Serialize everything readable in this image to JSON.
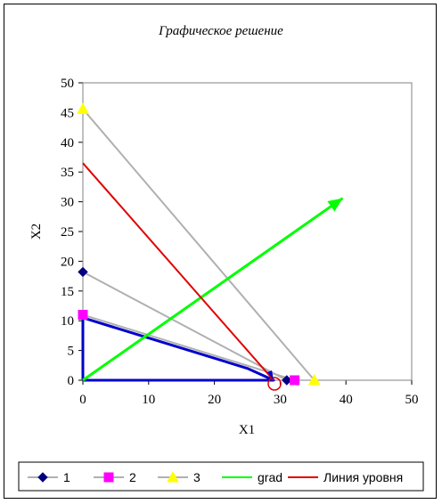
{
  "chart_data": {
    "type": "scatter",
    "title": "Графическое решение",
    "xlabel": "X1",
    "ylabel": "X2",
    "xlim": [
      0,
      50
    ],
    "ylim": [
      0,
      50
    ],
    "x_ticks": [
      "0",
      "10",
      "20",
      "30",
      "40",
      "50"
    ],
    "y_ticks": [
      "0",
      "5",
      "10",
      "15",
      "20",
      "25",
      "30",
      "35",
      "40",
      "45",
      "50"
    ],
    "grid": false,
    "legend_position": "bottom",
    "series": [
      {
        "name": "1",
        "color": "#b0b0b0",
        "marker": "diamond",
        "marker_color": "#000080",
        "points": [
          [
            0,
            18.2
          ],
          [
            31,
            0
          ]
        ]
      },
      {
        "name": "2",
        "color": "#b0b0b0",
        "marker": "square",
        "marker_color": "#ff00ff",
        "points": [
          [
            0,
            11
          ],
          [
            32.2,
            0
          ]
        ]
      },
      {
        "name": "3",
        "color": "#b0b0b0",
        "marker": "triangle",
        "marker_color": "#ffff00",
        "points": [
          [
            0,
            45.6
          ],
          [
            35.2,
            0
          ]
        ]
      },
      {
        "name": "grad",
        "color": "#00ff00",
        "marker": "none",
        "points": [
          [
            0,
            0
          ],
          [
            39.5,
            30.6
          ]
        ]
      },
      {
        "name": "Линия уровня",
        "color": "#e00000",
        "marker": "none",
        "points": [
          [
            0,
            36.5
          ],
          [
            29,
            0
          ]
        ]
      }
    ],
    "feasible_region": {
      "color": "#0000cc",
      "points": [
        [
          0,
          0
        ],
        [
          0,
          10.5
        ],
        [
          25,
          2
        ],
        [
          29,
          0
        ],
        [
          0,
          0
        ]
      ]
    },
    "optimum_point": {
      "x": 29,
      "y": 0,
      "color": "#e00000"
    }
  }
}
